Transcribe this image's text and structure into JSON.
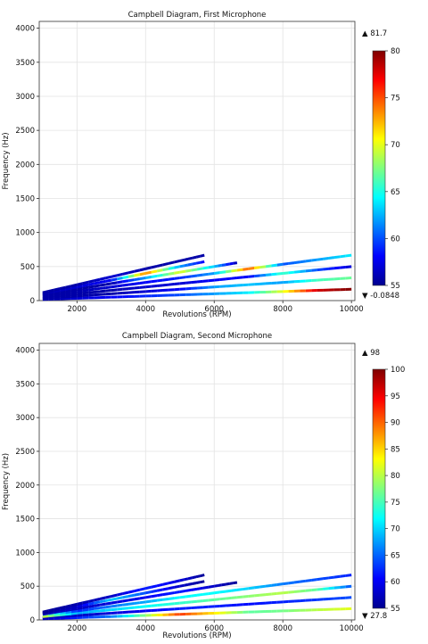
{
  "chart_data": [
    {
      "type": "line",
      "title": "Campbell Diagram, First Microphone",
      "xlabel": "Revolutions (RPM)",
      "ylabel": "Frequency (Hz)",
      "xlim": [
        900,
        10100
      ],
      "ylim": [
        0,
        4100
      ],
      "x_ticks": [
        "2000",
        "4000",
        "6000",
        "8000",
        "10000"
      ],
      "y_ticks": [
        "0",
        "500",
        "1000",
        "1500",
        "2000",
        "2500",
        "3000",
        "3500",
        "4000"
      ],
      "grid": true,
      "orders": [
        1,
        2,
        3,
        4,
        5,
        6,
        7
      ],
      "series": [
        {
          "order": 1,
          "x": [
            1000,
            2000,
            3000,
            4000,
            5000,
            6000,
            7000,
            8000,
            9000,
            10000
          ],
          "values": [
            56,
            57,
            58,
            59,
            60,
            62,
            64,
            70,
            78,
            80
          ]
        },
        {
          "order": 2,
          "x": [
            1000,
            2000,
            3000,
            4000,
            5000,
            6000,
            7000,
            8000,
            9000,
            10000
          ],
          "values": [
            56,
            56,
            56,
            57,
            58,
            62,
            63,
            62,
            66,
            67
          ]
        },
        {
          "order": 3,
          "x": [
            1000,
            2000,
            3000,
            4000,
            5000,
            6000,
            7000,
            8000,
            9000,
            10000
          ],
          "values": [
            56,
            56,
            56,
            57,
            57,
            58,
            58,
            66,
            60,
            57
          ]
        },
        {
          "order": 4,
          "x": [
            1000,
            2000,
            3000,
            4000,
            5000,
            6000,
            7000,
            8000,
            9000,
            10000
          ],
          "values": [
            56,
            56,
            57,
            58,
            59,
            62,
            75,
            60,
            62,
            64
          ]
        },
        {
          "order": 5,
          "x": [
            1000,
            2000,
            3000,
            4000,
            5000,
            6000,
            6667
          ],
          "values": [
            56,
            56,
            56,
            62,
            70,
            63,
            56
          ]
        },
        {
          "order": 6,
          "x": [
            1000,
            2000,
            3000,
            4000,
            5000,
            5714
          ],
          "values": [
            56,
            57,
            58,
            74,
            62,
            58
          ]
        },
        {
          "order": 7,
          "x": [
            1000,
            2000,
            3000,
            4000,
            5000,
            5714
          ],
          "values": [
            56,
            56,
            57,
            56,
            56,
            56
          ]
        }
      ],
      "colorbar": {
        "min": 55,
        "max": 80,
        "ticks": [
          "80",
          "75",
          "70",
          "65",
          "60",
          "55"
        ],
        "max_label": "▲ 81.7",
        "min_label": "▼ -0.0848"
      }
    },
    {
      "type": "line",
      "title": "Campbell Diagram, Second Microphone",
      "xlabel": "Revolutions (RPM)",
      "ylabel": "Frequency (Hz)",
      "xlim": [
        900,
        10100
      ],
      "ylim": [
        0,
        4100
      ],
      "x_ticks": [
        "2000",
        "4000",
        "6000",
        "8000",
        "10000"
      ],
      "y_ticks": [
        "0",
        "500",
        "1000",
        "1500",
        "2000",
        "2500",
        "3000",
        "3500",
        "4000"
      ],
      "grid": true,
      "orders": [
        1,
        2,
        3,
        4,
        5,
        6,
        7
      ],
      "series": [
        {
          "order": 1,
          "x": [
            1000,
            2000,
            3000,
            4000,
            5000,
            6000,
            7000,
            8000,
            9000,
            10000
          ],
          "values": [
            57,
            62,
            66,
            78,
            92,
            84,
            76,
            77,
            80,
            82
          ]
        },
        {
          "order": 2,
          "x": [
            1000,
            2000,
            3000,
            4000,
            5000,
            6000,
            7000,
            8000,
            9000,
            10000
          ],
          "values": [
            58,
            58,
            59,
            60,
            62,
            62,
            61,
            62,
            63,
            64
          ]
        },
        {
          "order": 3,
          "x": [
            1000,
            2000,
            3000,
            4000,
            5000,
            6000,
            7000,
            8000,
            9000,
            10000
          ],
          "values": [
            82,
            68,
            70,
            72,
            74,
            76,
            78,
            80,
            76,
            64
          ]
        },
        {
          "order": 4,
          "x": [
            1000,
            2000,
            3000,
            4000,
            5000,
            6000,
            7000,
            8000,
            9000,
            10000
          ],
          "values": [
            80,
            62,
            66,
            68,
            72,
            72,
            70,
            66,
            64,
            62
          ]
        },
        {
          "order": 5,
          "x": [
            1000,
            2000,
            3000,
            4000,
            5000,
            6000,
            6667
          ],
          "values": [
            58,
            58,
            59,
            60,
            62,
            58,
            56
          ]
        },
        {
          "order": 6,
          "x": [
            1000,
            2000,
            3000,
            4000,
            5000,
            5714
          ],
          "values": [
            56,
            58,
            70,
            64,
            58,
            56
          ]
        },
        {
          "order": 7,
          "x": [
            1000,
            2000,
            3000,
            4000,
            5000,
            5714
          ],
          "values": [
            56,
            57,
            58,
            62,
            59,
            56
          ]
        }
      ],
      "colorbar": {
        "min": 55,
        "max": 100,
        "ticks": [
          "100",
          "95",
          "90",
          "85",
          "80",
          "75",
          "70",
          "65",
          "60",
          "55"
        ],
        "max_label": "▲ 98",
        "min_label": "▼ 27.8"
      }
    }
  ]
}
